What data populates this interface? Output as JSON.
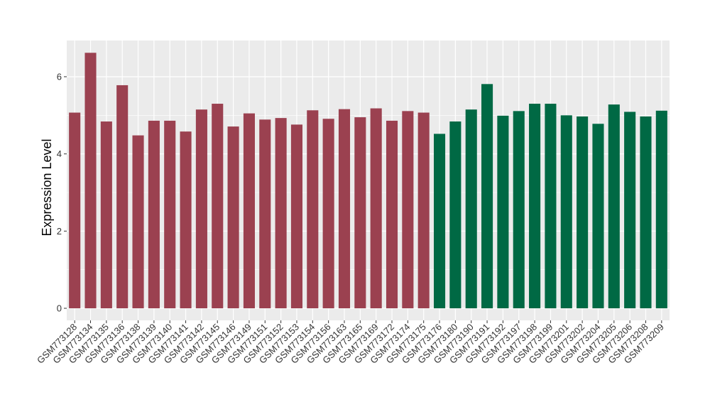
{
  "chart_data": {
    "type": "bar",
    "ylabel": "Expression Level",
    "xlabel": "",
    "ylim": [
      0,
      7
    ],
    "yticks": [
      0,
      2,
      4,
      6
    ],
    "grid": true,
    "background": "#ebebeb",
    "gridColor": "#ffffff",
    "categories": [
      "GSM773128",
      "GSM773134",
      "GSM773135",
      "GSM773136",
      "GSM773138",
      "GSM773139",
      "GSM773140",
      "GSM773141",
      "GSM773142",
      "GSM773145",
      "GSM773146",
      "GSM773149",
      "GSM773151",
      "GSM773152",
      "GSM773153",
      "GSM773154",
      "GSM773156",
      "GSM773163",
      "GSM773165",
      "GSM773169",
      "GSM773172",
      "GSM773174",
      "GSM773175",
      "GSM773176",
      "GSM773180",
      "GSM773190",
      "GSM773191",
      "GSM773192",
      "GSM773197",
      "GSM773198",
      "GSM773199",
      "GSM773201",
      "GSM773202",
      "GSM773204",
      "GSM773205",
      "GSM773206",
      "GSM773208",
      "GSM773209"
    ],
    "values": [
      5.07,
      6.62,
      4.84,
      5.78,
      4.48,
      4.86,
      4.86,
      4.58,
      5.15,
      5.3,
      4.71,
      5.05,
      4.89,
      4.93,
      4.76,
      5.13,
      4.91,
      5.16,
      4.95,
      5.18,
      4.86,
      5.11,
      5.07,
      4.52,
      4.84,
      5.15,
      5.81,
      4.99,
      5.11,
      5.3,
      5.3,
      5.0,
      4.97,
      4.78,
      5.28,
      5.09,
      4.97,
      5.12
    ],
    "groupColors": [
      "#9b4150",
      "#006944"
    ],
    "groups": [
      0,
      0,
      0,
      0,
      0,
      0,
      0,
      0,
      0,
      0,
      0,
      0,
      0,
      0,
      0,
      0,
      0,
      0,
      0,
      0,
      0,
      0,
      0,
      1,
      1,
      1,
      1,
      1,
      1,
      1,
      1,
      1,
      1,
      1,
      1,
      1,
      1,
      1
    ]
  }
}
